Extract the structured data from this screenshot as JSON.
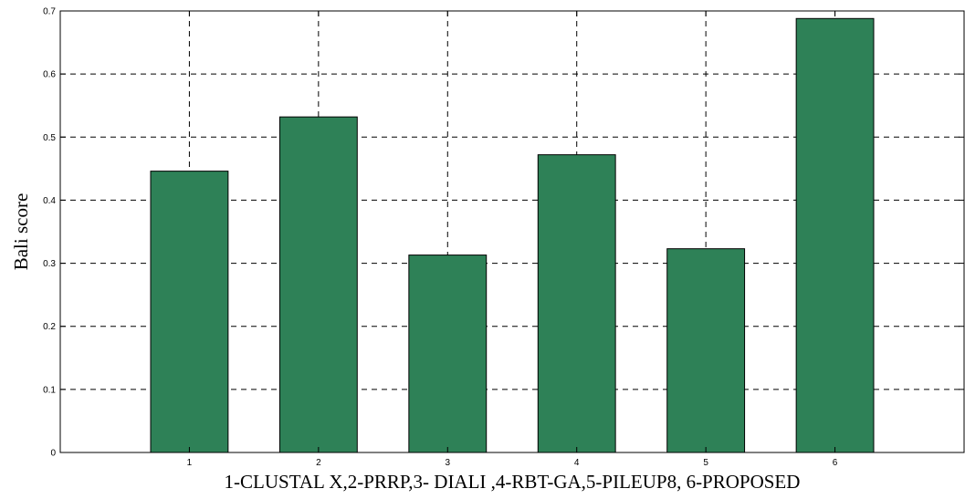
{
  "chart_data": {
    "type": "bar",
    "title": "",
    "xlabel": "1-CLUSTAL X,2-PRRP,3- DIALI ,4-RBT-GA,5-PILEUP8, 6-PROPOSED",
    "ylabel": "Bali score",
    "categories": [
      "1",
      "2",
      "3",
      "4",
      "5",
      "6"
    ],
    "values": [
      0.446,
      0.532,
      0.313,
      0.472,
      0.323,
      0.688
    ],
    "ylim": [
      0,
      0.7
    ],
    "xlim": [
      0,
      7
    ],
    "yticks": [
      "0",
      "0.1",
      "0.2",
      "0.3",
      "0.4",
      "0.5",
      "0.6",
      "0.7"
    ],
    "grid": true,
    "bar_color": "#2e8157"
  }
}
